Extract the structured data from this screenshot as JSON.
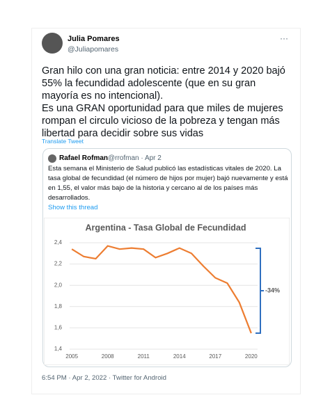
{
  "tweet": {
    "name": "Julia Pomares",
    "handle": "@Juliapomares",
    "text_lines": [
      "Gran hilo con una gran noticia: entre 2014 y 2020 bajó",
      "55%  la fecundidad adolescente (que en su gran",
      "mayoría es no intencional).",
      "Es una GRAN oportunidad para que miles de mujeres",
      "rompan el circulo vicioso de la pobreza y tengan más",
      "libertad para decidir sobre sus vidas"
    ],
    "translate": "Translate Tweet",
    "footer": "6:54 PM · Apr 2, 2022 · Twitter for Android"
  },
  "quote": {
    "name": "Rafael Rofman",
    "meta": "@rrofman · Apr 2",
    "text_lines": [
      "Esta semana el Ministerio de Salud publicó las estadísticas vitales de 2020. La",
      "tasa global de fecundidad (el número de hijos por mujer) bajó nuevamente y está",
      "en 1,55, el valor más bajo de la historia y cercano al de los países más",
      "desarrollados."
    ],
    "show_thread": "Show this thread"
  },
  "chart_data": {
    "type": "line",
    "title": "Argentina - Tasa Global de Fecundidad",
    "x": [
      2005,
      2006,
      2007,
      2008,
      2009,
      2010,
      2011,
      2012,
      2013,
      2014,
      2015,
      2016,
      2017,
      2018,
      2019,
      2020
    ],
    "values": [
      2.34,
      2.27,
      2.25,
      2.37,
      2.34,
      2.35,
      2.34,
      2.26,
      2.3,
      2.35,
      2.3,
      2.18,
      2.07,
      2.02,
      1.84,
      1.55
    ],
    "color": "#ed7d31",
    "xlim": [
      2004,
      2021
    ],
    "xticks": [
      2005,
      2008,
      2011,
      2014,
      2017,
      2020
    ],
    "ylim": [
      1.4,
      2.4
    ],
    "yticks": [
      {
        "value": 1.4,
        "label": "1,4"
      },
      {
        "value": 1.6,
        "label": "1,6"
      },
      {
        "value": 1.8,
        "label": "1,8"
      },
      {
        "value": 2.0,
        "label": "2,0"
      },
      {
        "value": 2.2,
        "label": "2,2"
      },
      {
        "value": 2.4,
        "label": "2,4"
      }
    ],
    "grid": true,
    "annotation": "-34%"
  }
}
